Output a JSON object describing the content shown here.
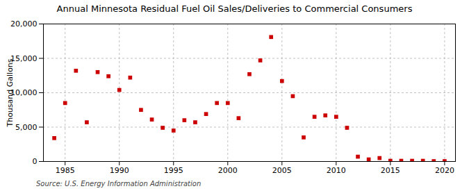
{
  "chart_data": {
    "type": "scatter",
    "title": "Annual Minnesota Residual Fuel Oil Sales/Deliveries to Commercial Consumers",
    "ylabel": "Thousand Gallons",
    "caption": "Source: U.S. Energy Information Administration",
    "color": "#cc0000",
    "marker": "square",
    "grid": true,
    "x": [
      1984,
      1985,
      1986,
      1987,
      1988,
      1989,
      1990,
      1991,
      1992,
      1993,
      1994,
      1995,
      1996,
      1997,
      1998,
      1999,
      2000,
      2001,
      2002,
      2003,
      2004,
      2005,
      2006,
      2007,
      2008,
      2009,
      2010,
      2011,
      2012,
      2013,
      2014,
      2015,
      2016,
      2017,
      2018,
      2019,
      2020
    ],
    "values": [
      3400,
      8500,
      13200,
      5700,
      13000,
      12400,
      10400,
      12200,
      7500,
      6100,
      4900,
      4500,
      6000,
      5700,
      6900,
      8500,
      8500,
      6300,
      12700,
      14700,
      18100,
      11700,
      9500,
      3500,
      6500,
      6700,
      6500,
      4900,
      700,
      300,
      500,
      100,
      100,
      100,
      100,
      50,
      50
    ],
    "xlim": [
      1983,
      2021
    ],
    "xticks": [
      1985,
      1990,
      1995,
      2000,
      2005,
      2010,
      2015,
      2020
    ],
    "ylim": [
      0,
      20000
    ],
    "yticks": [
      0,
      {
        "value": 5000,
        "label": "5,000"
      },
      {
        "value": 10000,
        "label": "10,000"
      },
      {
        "value": 15000,
        "label": "15,000"
      },
      {
        "value": 20000,
        "label": "20,000"
      }
    ]
  }
}
